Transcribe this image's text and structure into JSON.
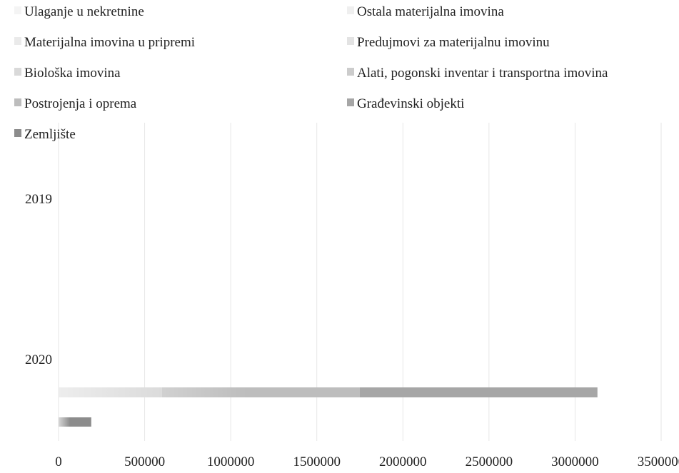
{
  "chart_data": {
    "type": "bar",
    "orientation": "horizontal",
    "stacked": true,
    "categories": [
      "2019",
      "2020"
    ],
    "x_ticks": [
      0,
      500000,
      1000000,
      1500000,
      2000000,
      2500000,
      3000000,
      3500000
    ],
    "xlim": [
      0,
      3500000
    ],
    "grid": true,
    "legend_position": "top",
    "series": [
      {
        "name": "Ulaganje u nekretnine",
        "color": "#f4f4f4",
        "values": [
          0,
          0
        ]
      },
      {
        "name": "Ostala materijalna imovina",
        "color": "#efefef",
        "values": [
          0,
          0
        ]
      },
      {
        "name": "Materijalna imovina u pripremi",
        "color": "#eaeaea",
        "values": [
          0,
          0
        ]
      },
      {
        "name": "Predujmovi za materijalnu imovinu",
        "color": "#e3e3e3",
        "values": [
          0,
          0
        ]
      },
      {
        "name": "Biološka imovina",
        "color": "#d9d9d9",
        "values": [
          0,
          0
        ]
      },
      {
        "name": "Alati, pogonski inventar i transportna imovina",
        "color": "#cccccc",
        "values": [
          0,
          600000
        ]
      },
      {
        "name": "Postrojenja i oprema",
        "color": "#bdbdbd",
        "values": [
          0,
          1150000
        ]
      },
      {
        "name": "Građevinski objekti",
        "color": "#a6a6a6",
        "values": [
          0,
          1380000
        ]
      },
      {
        "name": "Zemljište",
        "color": "#8c8c8c",
        "values": [
          190000,
          0
        ]
      }
    ]
  }
}
